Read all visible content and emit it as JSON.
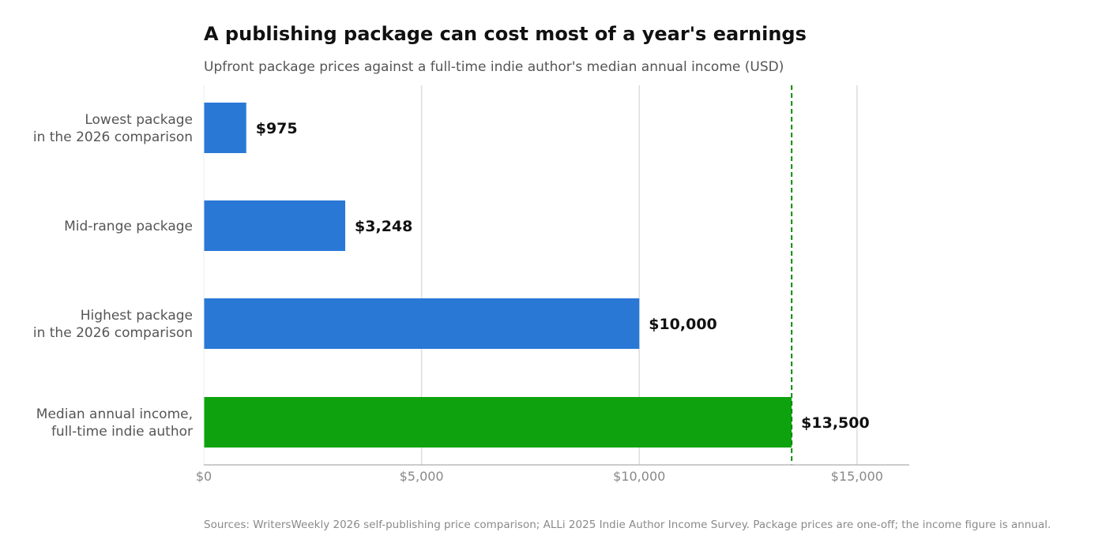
{
  "chart_data": {
    "type": "bar",
    "orientation": "horizontal",
    "title": "A publishing package can cost most of a year's earnings",
    "subtitle": "Upfront package prices against a full-time indie author's median annual income (USD)",
    "source": "Sources: WritersWeekly 2026 self-publishing price comparison; ALLi 2025 Indie Author Income Survey. Package prices are one-off; the income figure is annual.",
    "categories": [
      [
        "Lowest package",
        "in the 2026 comparison"
      ],
      [
        "Mid-range package"
      ],
      [
        "Highest package",
        "in the 2026 comparison"
      ],
      [
        "Median annual income,",
        "full-time indie author"
      ]
    ],
    "values": [
      975,
      3248,
      10000,
      13500
    ],
    "value_labels": [
      "$975",
      "$3,248",
      "$10,000",
      "$13,500"
    ],
    "bar_colors": [
      "#2a78d6",
      "#2a78d6",
      "#2a78d6",
      "#0ea30e"
    ],
    "reference_line": {
      "value": 13500,
      "color": "#0a8a0a",
      "style": "dashed"
    },
    "xlim": [
      0,
      16200
    ],
    "xticks": [
      0,
      5000,
      10000,
      15000
    ],
    "xtick_labels": [
      "$0",
      "$5,000",
      "$10,000",
      "$15,000"
    ],
    "grid": true
  }
}
